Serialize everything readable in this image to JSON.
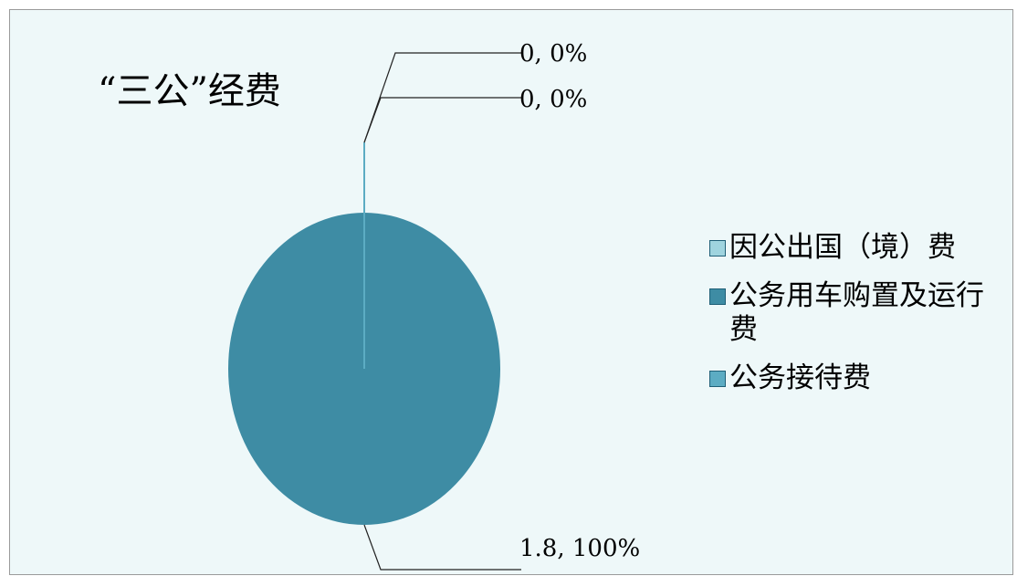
{
  "chart_data": {
    "type": "pie",
    "title": "“三公”经费",
    "categories": [
      "因公出国（境）费",
      "公务用车购置及运行费",
      "公务接待费"
    ],
    "values": [
      0,
      1.8,
      0
    ],
    "data_labels": [
      "0, 0%",
      "1.8, 100%",
      "0, 0%"
    ],
    "colors": [
      "#9fd4df",
      "#3e8ca4",
      "#5cacc3"
    ],
    "legend_position": "right"
  }
}
